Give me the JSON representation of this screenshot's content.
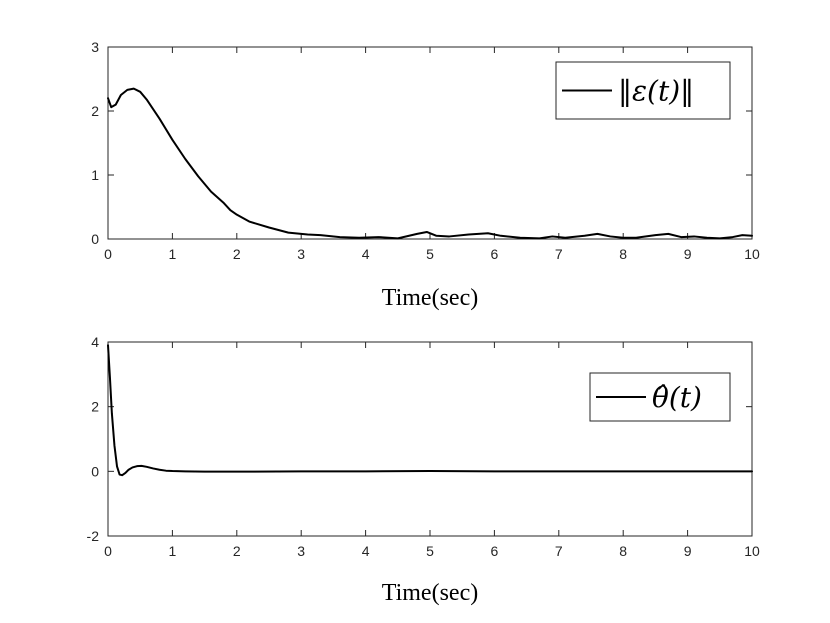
{
  "chart_data": [
    {
      "type": "line",
      "xlabel": "Time(sec)",
      "ylabel": "",
      "xlim": [
        0,
        10
      ],
      "ylim": [
        0,
        3
      ],
      "xticks": [
        "0",
        "1",
        "2",
        "3",
        "4",
        "5",
        "6",
        "7",
        "8",
        "9",
        "10"
      ],
      "yticks": [
        "0",
        "1",
        "2",
        "3"
      ],
      "grid": false,
      "legend_position": "top-right",
      "series": [
        {
          "name": "‖ε(t)‖",
          "color": "#000000",
          "x": [
            0,
            0.05,
            0.12,
            0.2,
            0.3,
            0.4,
            0.5,
            0.6,
            0.8,
            1.0,
            1.2,
            1.4,
            1.6,
            1.8,
            1.9,
            2.0,
            2.2,
            2.5,
            2.8,
            3.0,
            3.1,
            3.3,
            3.6,
            3.9,
            4.2,
            4.5,
            4.8,
            4.95,
            5.1,
            5.3,
            5.6,
            5.9,
            6.1,
            6.4,
            6.7,
            6.9,
            7.1,
            7.4,
            7.6,
            7.8,
            8.0,
            8.2,
            8.5,
            8.7,
            8.9,
            9.1,
            9.3,
            9.5,
            9.7,
            9.85,
            10.0
          ],
          "values": [
            2.2,
            2.06,
            2.1,
            2.25,
            2.33,
            2.35,
            2.3,
            2.18,
            1.88,
            1.55,
            1.25,
            0.98,
            0.74,
            0.56,
            0.45,
            0.38,
            0.27,
            0.18,
            0.1,
            0.08,
            0.07,
            0.06,
            0.03,
            0.02,
            0.03,
            0.01,
            0.08,
            0.11,
            0.05,
            0.04,
            0.07,
            0.09,
            0.05,
            0.02,
            0.01,
            0.04,
            0.02,
            0.05,
            0.08,
            0.04,
            0.02,
            0.02,
            0.06,
            0.08,
            0.03,
            0.04,
            0.02,
            0.01,
            0.03,
            0.06,
            0.05
          ]
        }
      ]
    },
    {
      "type": "line",
      "xlabel": "Time(sec)",
      "ylabel": "",
      "xlim": [
        0,
        10
      ],
      "ylim": [
        -2,
        4
      ],
      "xticks": [
        "0",
        "1",
        "2",
        "3",
        "4",
        "5",
        "6",
        "7",
        "8",
        "9",
        "10"
      ],
      "yticks": [
        "-2",
        "0",
        "2",
        "4"
      ],
      "grid": false,
      "legend_position": "top-right",
      "series": [
        {
          "name": "θ̂(t)",
          "color": "#000000",
          "x": [
            0,
            0.03,
            0.06,
            0.1,
            0.14,
            0.18,
            0.22,
            0.27,
            0.32,
            0.38,
            0.45,
            0.52,
            0.6,
            0.7,
            0.8,
            0.9,
            1.0,
            1.2,
            1.5,
            2.0,
            3.0,
            4.0,
            5.0,
            6.0,
            7.0,
            8.0,
            9.0,
            10.0
          ],
          "values": [
            3.9,
            2.9,
            1.8,
            0.8,
            0.15,
            -0.1,
            -0.12,
            -0.05,
            0.05,
            0.12,
            0.16,
            0.17,
            0.14,
            0.09,
            0.05,
            0.02,
            0.01,
            0.0,
            -0.01,
            -0.01,
            0.0,
            0.0,
            0.01,
            0.0,
            0.0,
            0.0,
            0.0,
            0.0
          ]
        }
      ]
    }
  ]
}
